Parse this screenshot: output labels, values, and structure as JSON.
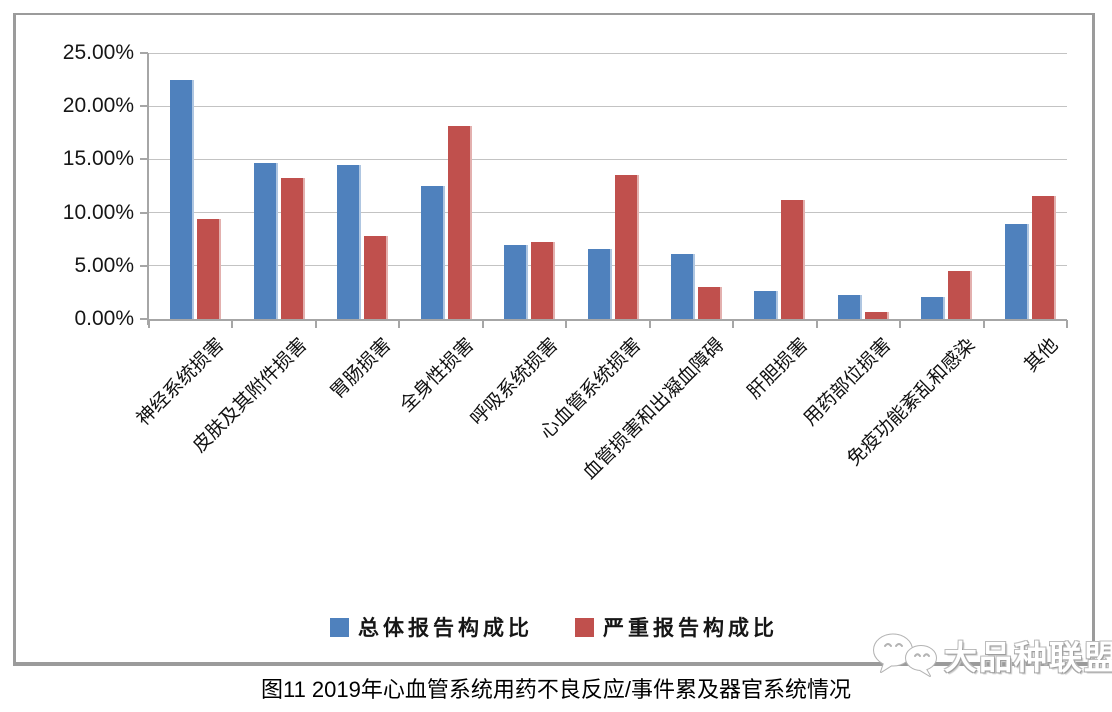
{
  "chart_data": {
    "type": "bar",
    "title": "图11 2019年心血管系统用药不良反应/事件累及器官系统情况",
    "categories": [
      "神经系统损害",
      "皮肤及其附件损害",
      "胃肠损害",
      "全身性损害",
      "呼吸系统损害",
      "心血管系统损害",
      "血管损害和出凝血障碍",
      "肝胆损害",
      "用药部位损害",
      "免疫功能紊乱和感染",
      "其他"
    ],
    "series": [
      {
        "name": "总体报告构成比",
        "color": "#4F81BD",
        "values": [
          22.5,
          14.7,
          14.5,
          12.5,
          7.0,
          6.6,
          6.1,
          2.6,
          2.3,
          2.1,
          8.9
        ]
      },
      {
        "name": "严重报告构成比",
        "color": "#C0504D",
        "values": [
          9.4,
          13.3,
          7.8,
          18.1,
          7.2,
          13.5,
          3.0,
          11.2,
          0.7,
          4.5,
          11.6
        ]
      }
    ],
    "ylabel": "",
    "xlabel": "",
    "ylim": [
      0,
      25
    ],
    "ytick_step": 5,
    "ytick_labels": [
      "0.00%",
      "5.00%",
      "10.00%",
      "15.00%",
      "20.00%",
      "25.00%"
    ],
    "grid": true,
    "legend_position": "bottom",
    "gridline_color": "#c3c3c3",
    "axis_color": "#a6a6a6"
  },
  "watermark": {
    "text": "大品种联盟",
    "icon": "wechat-icon"
  }
}
